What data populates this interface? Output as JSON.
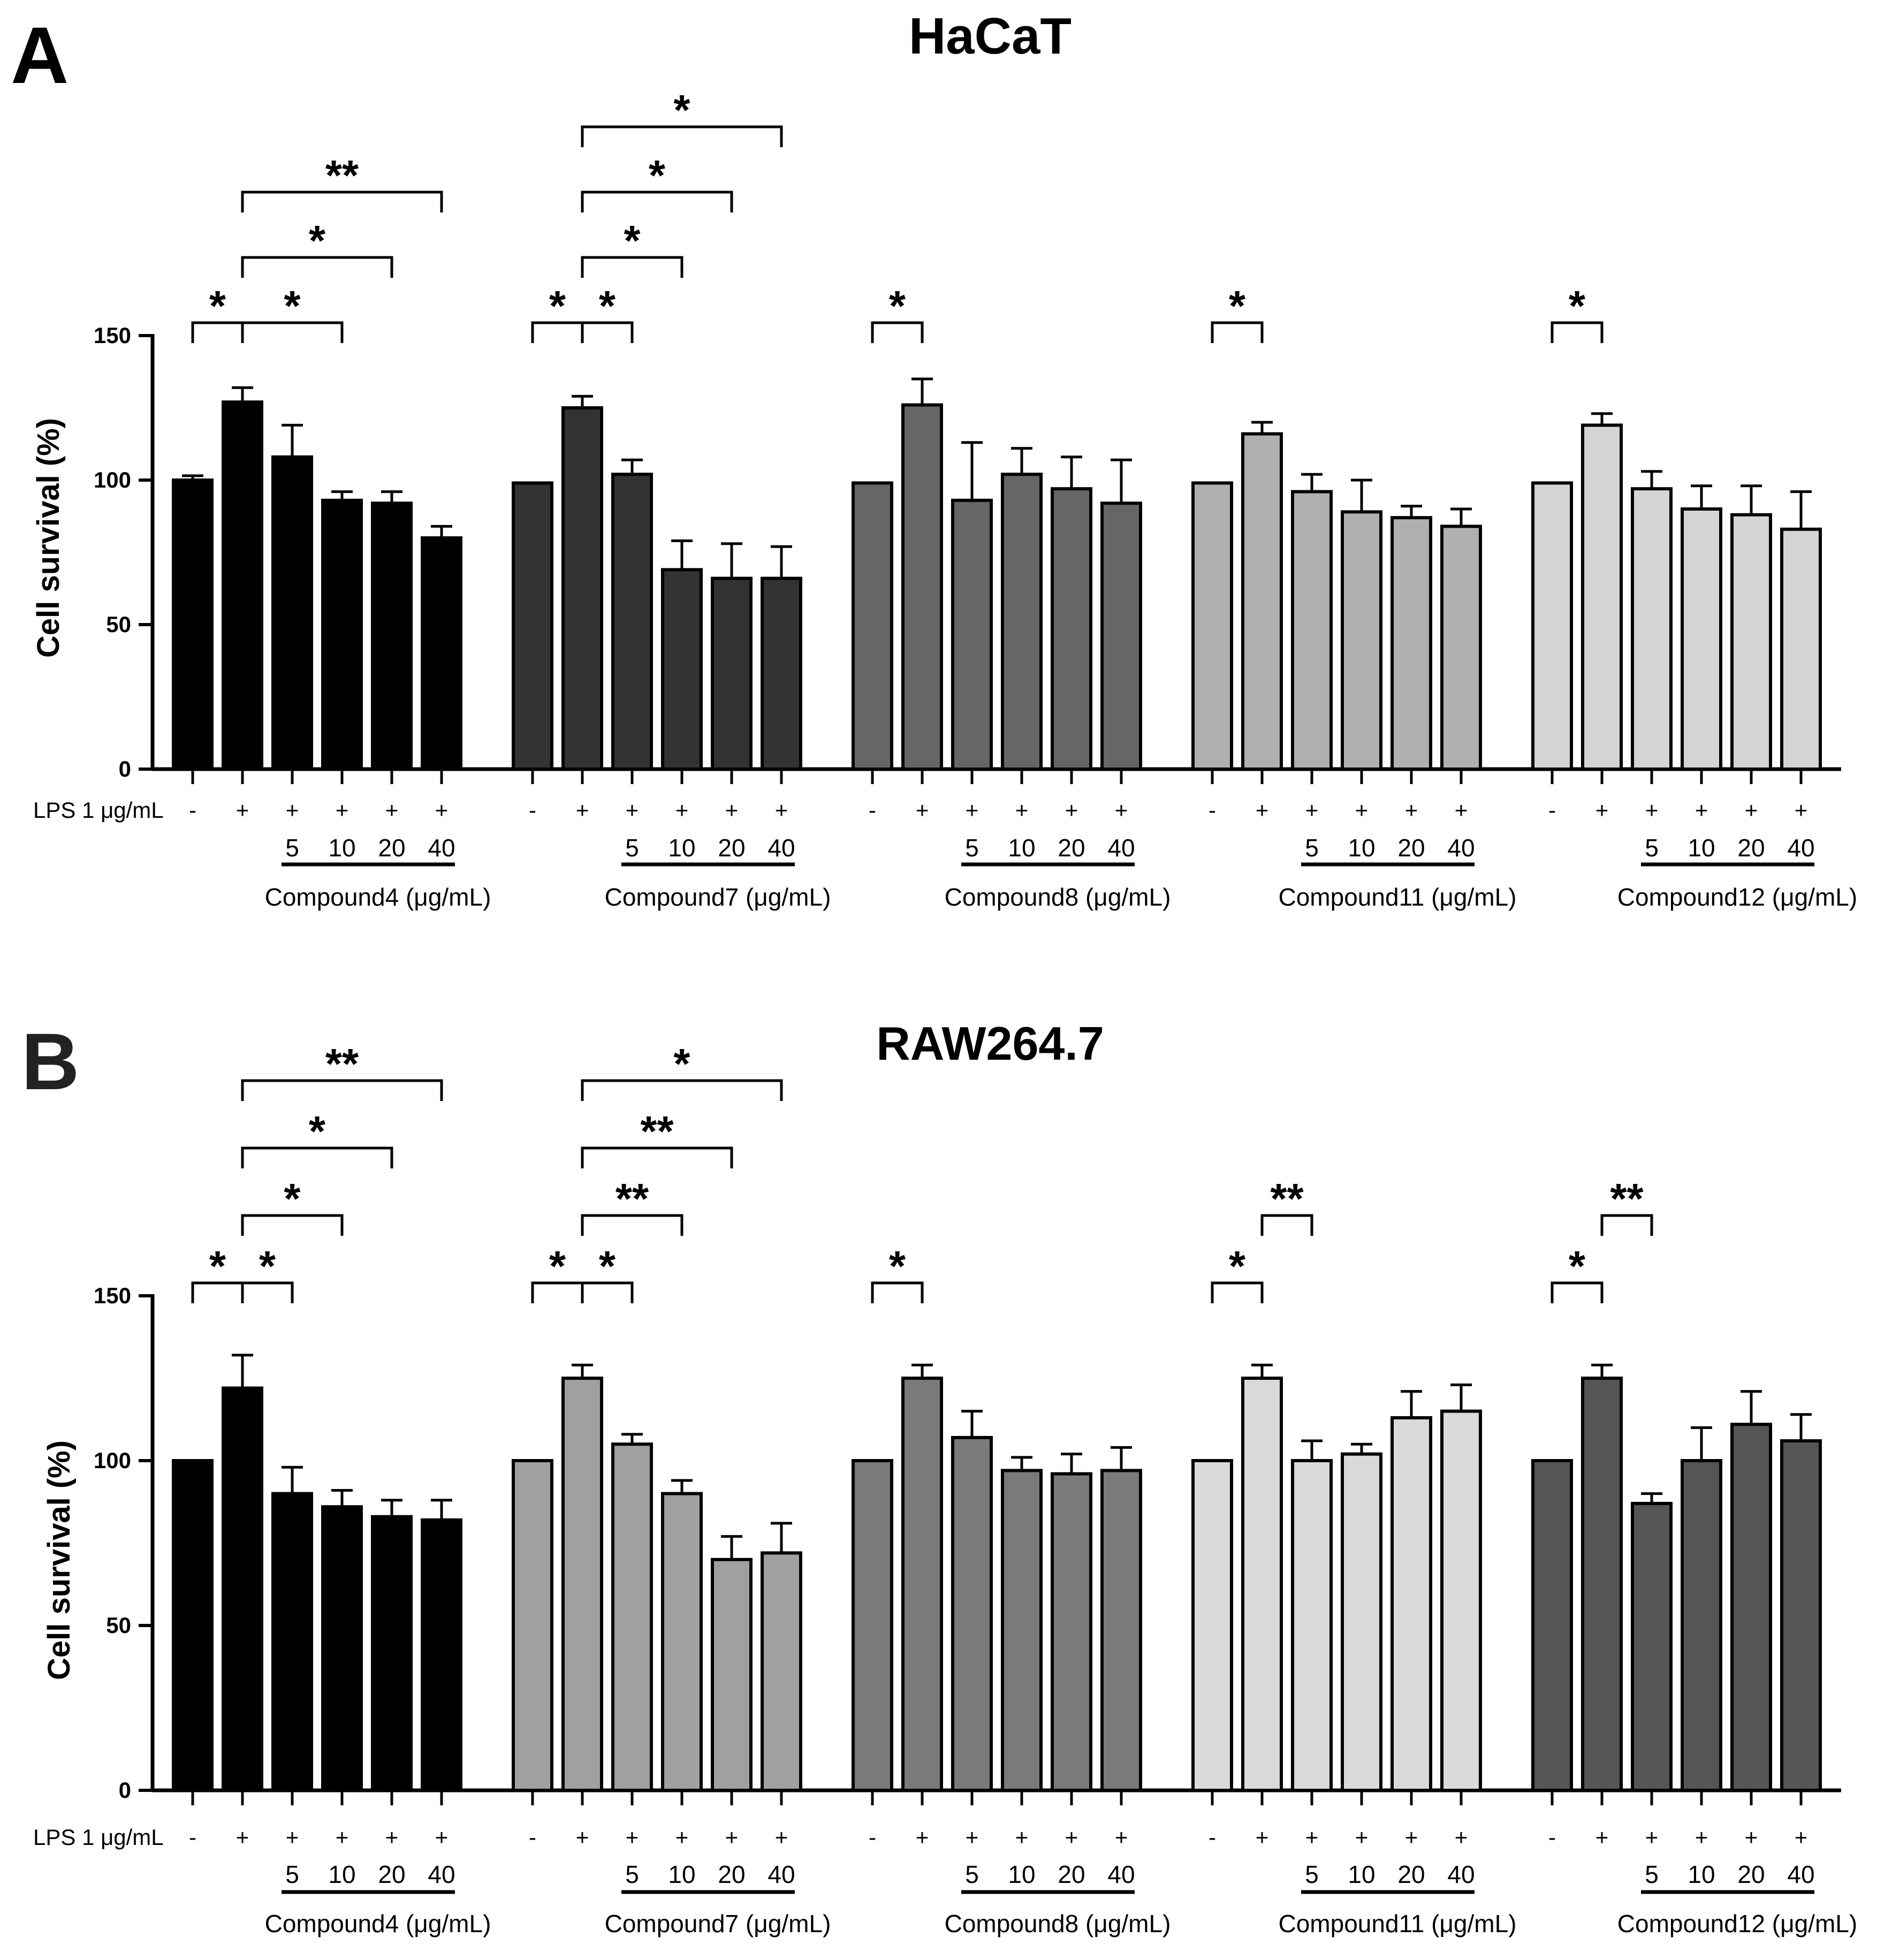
{
  "figure": {
    "panel_labels": [
      "A",
      "B"
    ],
    "lps_label": "LPS 1 μg/mL"
  },
  "chart_data": [
    {
      "type": "bar",
      "panel": "A",
      "title": "HaCaT",
      "ylabel": "Cell survival (%)",
      "xlabel": "",
      "ylim": [
        0,
        150
      ],
      "yticks": [
        0,
        50,
        100,
        150
      ],
      "lps_signs": [
        "-",
        "+",
        "+",
        "+",
        "+",
        "+"
      ],
      "concentrations": [
        "",
        "",
        "5",
        "10",
        "20",
        "40"
      ],
      "groups": [
        {
          "name": "Compound4 (μg/mL)",
          "color": "#000000",
          "values": [
            100,
            127,
            108,
            93,
            92,
            80
          ],
          "errors": [
            1.5,
            5,
            11,
            3,
            4,
            4
          ]
        },
        {
          "name": "Compound7 (μg/mL)",
          "color": "#333333",
          "values": [
            99,
            125,
            102,
            69,
            66,
            66
          ],
          "errors": [
            0,
            4,
            5,
            10,
            12,
            11
          ]
        },
        {
          "name": "Compound8 (μg/mL)",
          "color": "#666666",
          "values": [
            99,
            126,
            93,
            102,
            97,
            92
          ],
          "errors": [
            0,
            9,
            20,
            9,
            11,
            15
          ]
        },
        {
          "name": "Compound11 (μg/mL)",
          "color": "#b0b0b0",
          "values": [
            99,
            116,
            96,
            89,
            87,
            84
          ],
          "errors": [
            0,
            4,
            6,
            11,
            4,
            6
          ]
        },
        {
          "name": "Compound12 (μg/mL)",
          "color": "#d4d4d4",
          "values": [
            99,
            119,
            97,
            90,
            88,
            83
          ],
          "errors": [
            0,
            4,
            6,
            8,
            10,
            13
          ]
        }
      ],
      "significance": [
        [
          {
            "from": 0,
            "to": 1,
            "level": 1,
            "label": "*"
          },
          {
            "from": 1,
            "to": 3,
            "level": 1,
            "label": "*"
          },
          {
            "from": 1,
            "to": 4,
            "level": 2,
            "label": "*"
          },
          {
            "from": 1,
            "to": 5,
            "level": 3,
            "label": "**"
          }
        ],
        [
          {
            "from": 0,
            "to": 1,
            "level": 1,
            "label": "*"
          },
          {
            "from": 1,
            "to": 2,
            "level": 1,
            "label": "*"
          },
          {
            "from": 1,
            "to": 3,
            "level": 2,
            "label": "*"
          },
          {
            "from": 1,
            "to": 4,
            "level": 3,
            "label": "*"
          },
          {
            "from": 1,
            "to": 5,
            "level": 4,
            "label": "*"
          }
        ],
        [
          {
            "from": 0,
            "to": 1,
            "level": 1,
            "label": "*"
          }
        ],
        [
          {
            "from": 0,
            "to": 1,
            "level": 1,
            "label": "*"
          }
        ],
        [
          {
            "from": 0,
            "to": 1,
            "level": 1,
            "label": "*"
          }
        ]
      ]
    },
    {
      "type": "bar",
      "panel": "B",
      "title": "RAW264.7",
      "ylabel": "Cell survival (%)",
      "xlabel": "",
      "ylim": [
        0,
        150
      ],
      "yticks": [
        0,
        50,
        100,
        150
      ],
      "lps_signs": [
        "-",
        "+",
        "+",
        "+",
        "+",
        "+"
      ],
      "concentrations": [
        "",
        "",
        "5",
        "10",
        "20",
        "40"
      ],
      "groups": [
        {
          "name": "Compound4 (μg/mL)",
          "color": "#000000",
          "values": [
            100,
            122,
            90,
            86,
            83,
            82
          ],
          "errors": [
            0,
            10,
            8,
            5,
            5,
            6
          ]
        },
        {
          "name": "Compound7 (μg/mL)",
          "color": "#a0a0a0",
          "values": [
            100,
            125,
            105,
            90,
            70,
            72
          ],
          "errors": [
            0,
            4,
            3,
            4,
            7,
            9
          ]
        },
        {
          "name": "Compound8 (μg/mL)",
          "color": "#7a7a7a",
          "values": [
            100,
            125,
            107,
            97,
            96,
            97
          ],
          "errors": [
            0,
            4,
            8,
            4,
            6,
            7
          ]
        },
        {
          "name": "Compound11 (μg/mL)",
          "color": "#d9d9d9",
          "values": [
            100,
            125,
            100,
            102,
            113,
            115
          ],
          "errors": [
            0,
            4,
            6,
            3,
            8,
            8
          ]
        },
        {
          "name": "Compound12 (μg/mL)",
          "color": "#555555",
          "values": [
            100,
            125,
            87,
            100,
            111,
            106
          ],
          "errors": [
            0,
            4,
            3,
            10,
            10,
            8
          ]
        }
      ],
      "significance": [
        [
          {
            "from": 0,
            "to": 1,
            "level": 1,
            "label": "*"
          },
          {
            "from": 1,
            "to": 2,
            "level": 1,
            "label": "*"
          },
          {
            "from": 1,
            "to": 3,
            "level": 2,
            "label": "*"
          },
          {
            "from": 1,
            "to": 4,
            "level": 3,
            "label": "*"
          },
          {
            "from": 1,
            "to": 5,
            "level": 4,
            "label": "**"
          }
        ],
        [
          {
            "from": 0,
            "to": 1,
            "level": 1,
            "label": "*"
          },
          {
            "from": 1,
            "to": 2,
            "level": 1,
            "label": "*"
          },
          {
            "from": 1,
            "to": 3,
            "level": 2,
            "label": "**"
          },
          {
            "from": 1,
            "to": 4,
            "level": 3,
            "label": "**"
          },
          {
            "from": 1,
            "to": 5,
            "level": 4,
            "label": "*"
          }
        ],
        [
          {
            "from": 0,
            "to": 1,
            "level": 1,
            "label": "*"
          }
        ],
        [
          {
            "from": 0,
            "to": 1,
            "level": 1,
            "label": "*"
          },
          {
            "from": 1,
            "to": 2,
            "level": 2,
            "label": "**"
          }
        ],
        [
          {
            "from": 0,
            "to": 1,
            "level": 1,
            "label": "*"
          },
          {
            "from": 1,
            "to": 2,
            "level": 2,
            "label": "**"
          }
        ]
      ]
    }
  ]
}
